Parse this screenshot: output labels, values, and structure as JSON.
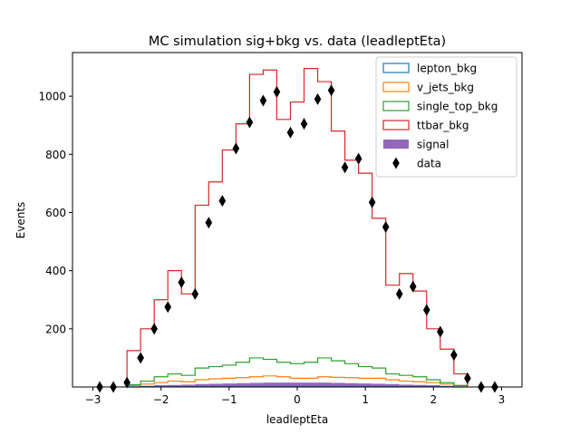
{
  "chart_data": {
    "type": "histogram",
    "title": "MC simulation sig+bkg vs. data (leadleptEta)",
    "xlabel": "leadleptEta",
    "ylabel": "Events",
    "xlim": [
      -3.3,
      3.3
    ],
    "ylim": [
      0,
      1150
    ],
    "xticks": [
      -3,
      -2,
      -1,
      0,
      1,
      2,
      3
    ],
    "yticks": [
      200,
      400,
      600,
      800,
      1000
    ],
    "legend_position": "top-right",
    "bin_edges": [
      -2.5,
      -2.3,
      -2.1,
      -1.9,
      -1.7,
      -1.5,
      -1.3,
      -1.1,
      -0.9,
      -0.7,
      -0.5,
      -0.3,
      -0.1,
      0.1,
      0.3,
      0.5,
      0.7,
      0.9,
      1.1,
      1.3,
      1.5,
      1.7,
      1.9,
      2.1,
      2.3,
      2.5
    ],
    "series": [
      {
        "name": "lepton_bkg",
        "style": "step",
        "color": "#1f77b4",
        "values": [
          0,
          1,
          1,
          1,
          1,
          1,
          1,
          1,
          1,
          1,
          1,
          1,
          1,
          1,
          1,
          1,
          1,
          1,
          1,
          1,
          1,
          1,
          1,
          1,
          0
        ]
      },
      {
        "name": "v_jets_bkg",
        "style": "step",
        "color": "#ff7f0e",
        "values": [
          5,
          10,
          15,
          20,
          18,
          25,
          28,
          30,
          32,
          35,
          38,
          35,
          30,
          30,
          35,
          33,
          32,
          30,
          30,
          25,
          20,
          18,
          15,
          10,
          5
        ]
      },
      {
        "name": "single_top_bkg",
        "style": "step",
        "color": "#2ca02c",
        "values": [
          8,
          20,
          35,
          45,
          40,
          65,
          70,
          75,
          85,
          100,
          95,
          85,
          80,
          85,
          100,
          90,
          80,
          70,
          65,
          45,
          40,
          35,
          25,
          15,
          5
        ]
      },
      {
        "name": "ttbar_bkg",
        "style": "step",
        "color": "#d62728",
        "values": [
          125,
          200,
          300,
          400,
          320,
          625,
          705,
          815,
          905,
          1075,
          1090,
          920,
          980,
          1095,
          1050,
          880,
          780,
          735,
          580,
          350,
          390,
          330,
          200,
          130,
          45
        ]
      },
      {
        "name": "signal",
        "style": "filled",
        "color": "#9467bd",
        "values": [
          2,
          4,
          6,
          7,
          8,
          10,
          11,
          12,
          13,
          14,
          15,
          15,
          15,
          15,
          15,
          14,
          13,
          12,
          11,
          10,
          8,
          7,
          6,
          4,
          2
        ]
      }
    ],
    "data": {
      "name": "data",
      "color": "#000000",
      "x": [
        -2.9,
        -2.7,
        -2.5,
        -2.3,
        -2.1,
        -1.9,
        -1.7,
        -1.5,
        -1.3,
        -1.1,
        -0.9,
        -0.7,
        -0.5,
        -0.3,
        -0.1,
        0.1,
        0.3,
        0.5,
        0.7,
        0.9,
        1.1,
        1.3,
        1.5,
        1.7,
        1.9,
        2.1,
        2.3,
        2.5,
        2.7,
        2.9
      ],
      "y": [
        0,
        0,
        15,
        100,
        200,
        275,
        360,
        320,
        565,
        640,
        820,
        910,
        985,
        1015,
        875,
        905,
        990,
        1020,
        755,
        785,
        635,
        550,
        320,
        345,
        265,
        190,
        110,
        30,
        0,
        0
      ]
    },
    "legend": [
      "lepton_bkg",
      "v_jets_bkg",
      "single_top_bkg",
      "ttbar_bkg",
      "signal",
      "data"
    ]
  }
}
